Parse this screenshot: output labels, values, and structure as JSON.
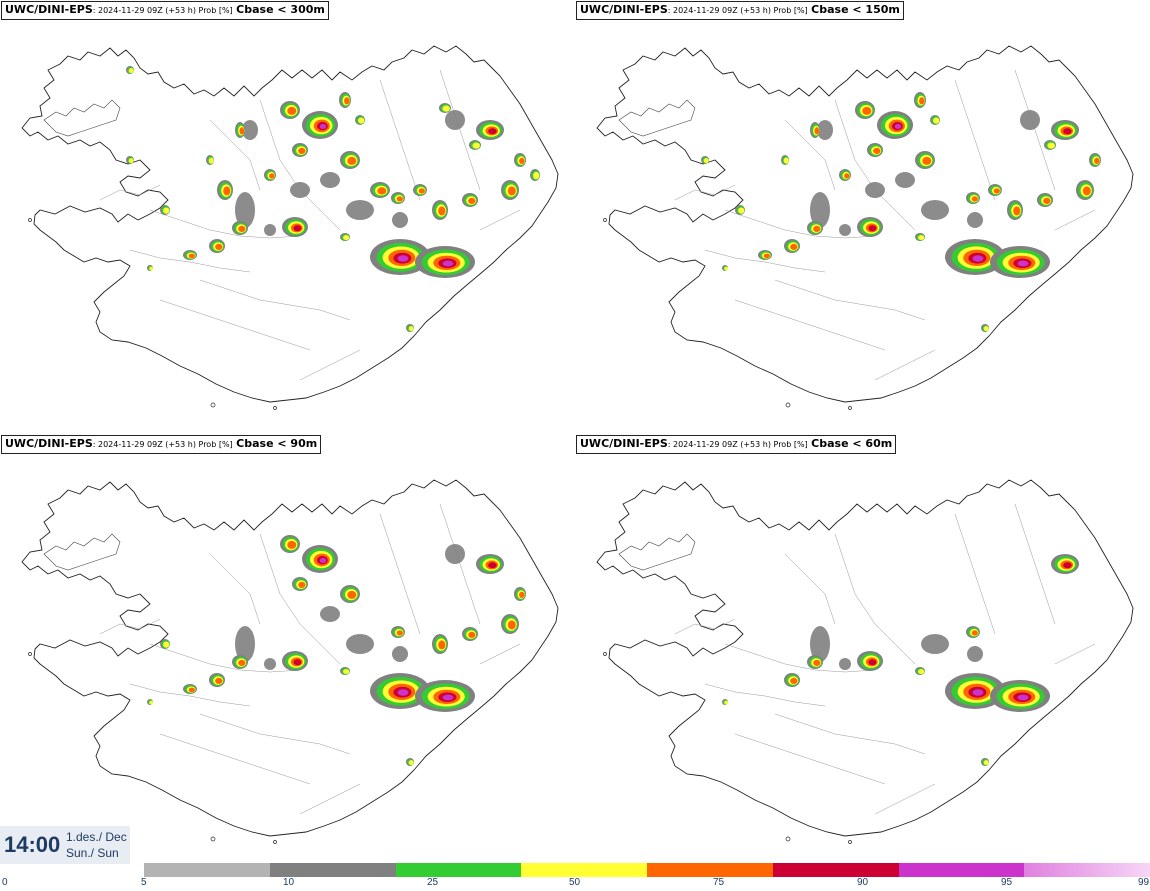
{
  "panels": [
    {
      "source": "UWC/DINI-EPS",
      "meta": ": 2024-11-29 09Z (+53 h) Prob [%]",
      "variable": "Cbase < 300m",
      "level": 4
    },
    {
      "source": "UWC/DINI-EPS",
      "meta": ": 2024-11-29 09Z (+53 h) Prob [%]",
      "variable": "Cbase < 150m",
      "level": 3
    },
    {
      "source": "UWC/DINI-EPS",
      "meta": ": 2024-11-29 09Z (+53 h) Prob [%]",
      "variable": "Cbase < 90m",
      "level": 2
    },
    {
      "source": "UWC/DINI-EPS",
      "meta": ": 2024-11-29 09Z (+53 h) Prob [%]",
      "variable": "Cbase < 60m",
      "level": 1
    }
  ],
  "valid_time": {
    "time": "14:00",
    "date": "1.des./ Dec",
    "day": "Sun./ Sun"
  },
  "legend": {
    "ticks": [
      "0",
      "5",
      "10",
      "25",
      "50",
      "75",
      "90",
      "95",
      "99"
    ],
    "colors": [
      "#b3b3b3",
      "#808080",
      "#33cc33",
      "#ffff33",
      "#ff6600",
      "#cc0033",
      "#cc33cc",
      "#f0b0f0"
    ]
  }
}
